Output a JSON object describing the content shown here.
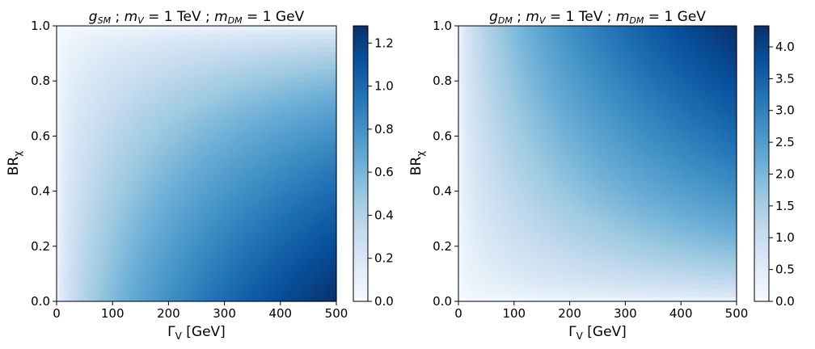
{
  "chart_data": [
    {
      "type": "heatmap",
      "title": "g_SM ; m_V = 1 TeV ; m_DM = 1 GeV",
      "title_parts": {
        "g": "g",
        "g_sub": "SM",
        "mid1": " ; ",
        "mv": "m",
        "mv_sub": "V",
        "eq1": " = 1 TeV ; ",
        "mdm": "m",
        "mdm_sub": "DM",
        "eq2": " = 1 GeV"
      },
      "xlabel": "Γ_V [GeV]",
      "xlabel_parts": {
        "main": "Γ",
        "sub": "V",
        "rest": " [GeV]"
      },
      "ylabel": "BR_χ",
      "ylabel_parts": {
        "main": "BR",
        "sub": "χ"
      },
      "xlim": [
        0,
        500
      ],
      "ylim": [
        0,
        1.0
      ],
      "xticks": [
        "0",
        "100",
        "200",
        "300",
        "400",
        "500"
      ],
      "yticks": [
        "0.0",
        "0.2",
        "0.4",
        "0.6",
        "0.8",
        "1.0"
      ],
      "colormap": "Blues",
      "colorbar": {
        "range": [
          0,
          1.28
        ],
        "ticks": [
          "0.0",
          "0.2",
          "0.4",
          "0.6",
          "0.8",
          "1.0",
          "1.2"
        ],
        "tick_values": [
          0,
          0.2,
          0.4,
          0.6,
          0.8,
          1.0,
          1.2
        ]
      },
      "values_formula": "coupling_sm",
      "approx_values": {
        "x": [
          0,
          100,
          200,
          300,
          400,
          500
        ],
        "y": [
          0,
          0.5,
          1.0
        ],
        "z": [
          [
            0,
            0.57,
            0.81,
            0.99,
            1.14,
            1.28
          ],
          [
            0,
            0.4,
            0.57,
            0.7,
            0.81,
            0.9
          ],
          [
            0,
            0,
            0,
            0,
            0,
            0
          ]
        ]
      }
    },
    {
      "type": "heatmap",
      "title": "g_DM ; m_V = 1 TeV ; m_DM = 1 GeV",
      "title_parts": {
        "g": "g",
        "g_sub": "DM",
        "mid1": " ; ",
        "mv": "m",
        "mv_sub": "V",
        "eq1": " = 1 TeV ; ",
        "mdm": "m",
        "mdm_sub": "DM",
        "eq2": " = 1 GeV"
      },
      "xlabel": "Γ_V [GeV]",
      "xlabel_parts": {
        "main": "Γ",
        "sub": "V",
        "rest": " [GeV]"
      },
      "ylabel": "BR_χ",
      "ylabel_parts": {
        "main": "BR",
        "sub": "χ"
      },
      "xlim": [
        0,
        500
      ],
      "ylim": [
        0,
        1.0
      ],
      "xticks": [
        "0",
        "100",
        "200",
        "300",
        "400",
        "500"
      ],
      "yticks": [
        "0.0",
        "0.2",
        "0.4",
        "0.6",
        "0.8",
        "1.0"
      ],
      "colormap": "Blues",
      "colorbar": {
        "range": [
          0,
          4.33
        ],
        "ticks": [
          "0.0",
          "0.5",
          "1.0",
          "1.5",
          "2.0",
          "2.5",
          "3.0",
          "3.5",
          "4.0"
        ],
        "tick_values": [
          0,
          0.5,
          1.0,
          1.5,
          2.0,
          2.5,
          3.0,
          3.5,
          4.0
        ]
      },
      "values_formula": "coupling_dm",
      "approx_values": {
        "x": [
          0,
          100,
          200,
          300,
          400,
          500
        ],
        "y": [
          0,
          0.5,
          1.0
        ],
        "z": [
          [
            0,
            0,
            0,
            0,
            0,
            0
          ],
          [
            0,
            1.37,
            1.94,
            2.37,
            2.74,
            3.06
          ],
          [
            0,
            1.94,
            2.74,
            3.36,
            3.88,
            4.33
          ]
        ]
      }
    }
  ]
}
